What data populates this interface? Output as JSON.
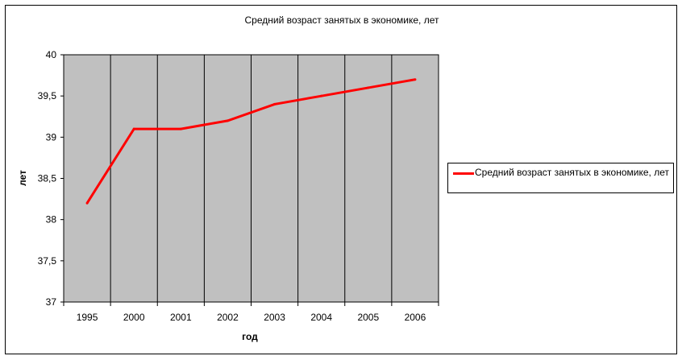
{
  "chart_data": {
    "type": "line",
    "title": "Средний возраст занятых в экономике, лет",
    "xlabel": "год",
    "ylabel": "лет",
    "categories": [
      "1995",
      "2000",
      "2001",
      "2002",
      "2003",
      "2004",
      "2005",
      "2006"
    ],
    "series": [
      {
        "name": "Средний возраст занятых в экономике, лет",
        "values": [
          38.2,
          39.1,
          39.1,
          39.2,
          39.4,
          39.5,
          39.6,
          39.7
        ],
        "color": "#ff0000"
      }
    ],
    "ylim": [
      37,
      40
    ],
    "yticks": [
      37,
      37.5,
      38,
      38.5,
      39,
      39.5,
      40
    ],
    "ytick_labels": [
      "37",
      "37,5",
      "38",
      "38,5",
      "39",
      "39,5",
      "40"
    ],
    "grid": "vertical",
    "plot_background": "#c0c0c0",
    "legend_position": "right"
  }
}
